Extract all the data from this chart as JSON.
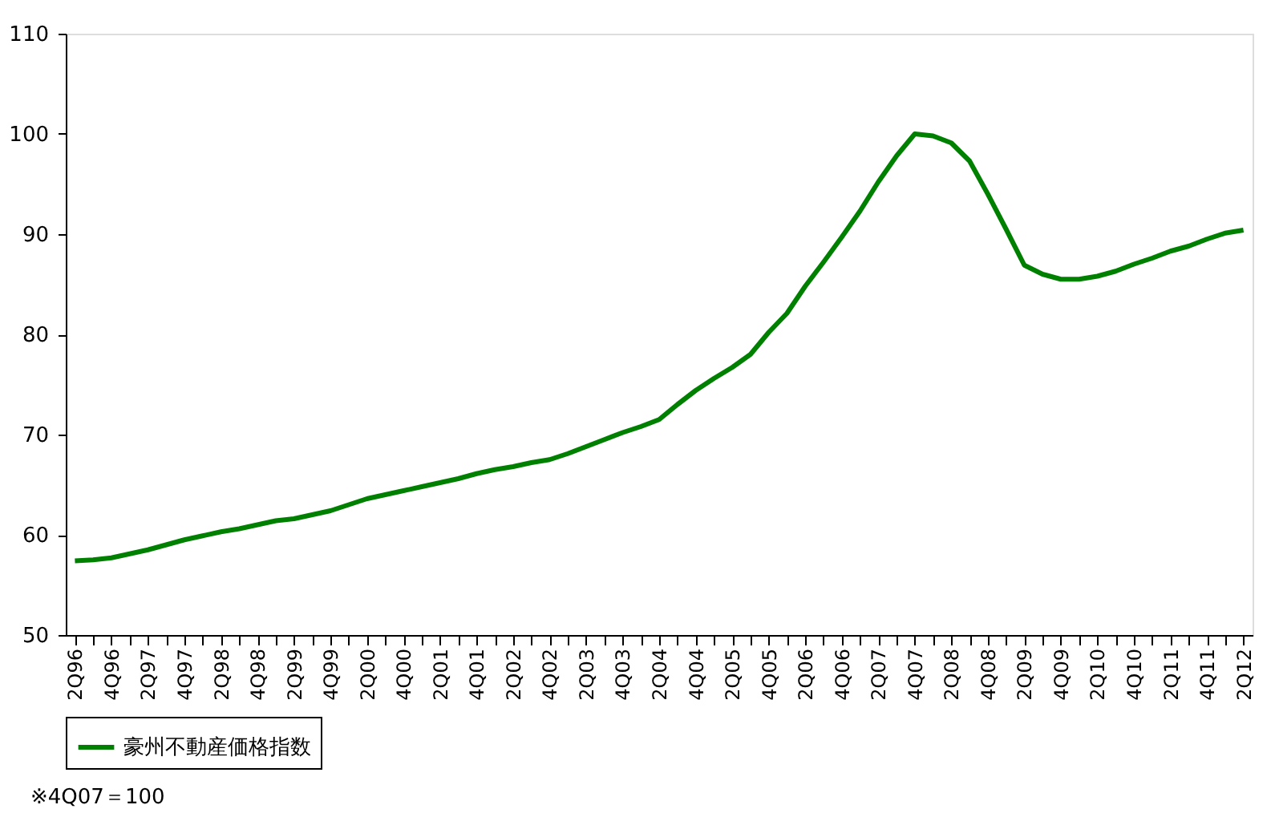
{
  "chart_data": {
    "type": "line",
    "categories": [
      "2Q96",
      null,
      "4Q96",
      null,
      "2Q97",
      null,
      "4Q97",
      null,
      "2Q98",
      null,
      "4Q98",
      null,
      "2Q99",
      null,
      "4Q99",
      null,
      "2Q00",
      null,
      "4Q00",
      null,
      "2Q01",
      null,
      "4Q01",
      null,
      "2Q02",
      null,
      "4Q02",
      null,
      "2Q03",
      null,
      "4Q03",
      null,
      "2Q04",
      null,
      "4Q04",
      null,
      "2Q05",
      null,
      "4Q05",
      null,
      "2Q06",
      null,
      "4Q06",
      null,
      "2Q07",
      null,
      "4Q07",
      null,
      "2Q08",
      null,
      "4Q08",
      null,
      "2Q09",
      null,
      "4Q09",
      null,
      "2Q10",
      null,
      "4Q10",
      null,
      "2Q11",
      null,
      "4Q11",
      null,
      "2Q12"
    ],
    "series": [
      {
        "name": "豪州不動産価格指数",
        "color": "#008000",
        "values": [
          57.4,
          57.5,
          57.7,
          58.1,
          58.5,
          59.0,
          59.5,
          59.9,
          60.3,
          60.6,
          61.0,
          61.4,
          61.6,
          62.0,
          62.4,
          63.0,
          63.6,
          64.0,
          64.4,
          64.8,
          65.2,
          65.6,
          66.1,
          66.5,
          66.8,
          67.2,
          67.5,
          68.1,
          68.8,
          69.5,
          70.2,
          70.8,
          71.5,
          73.0,
          74.4,
          75.6,
          76.7,
          78.0,
          80.2,
          82.1,
          84.8,
          87.2,
          89.7,
          92.3,
          95.2,
          97.8,
          100,
          99.8,
          99.1,
          97.3,
          94.0,
          90.5,
          86.9,
          86.0,
          85.5,
          85.5,
          85.8,
          86.3,
          87.0,
          87.6,
          88.3,
          88.8,
          89.5,
          90.1,
          90.4
        ]
      }
    ],
    "ylim": [
      50,
      110
    ],
    "yticks": [
      50,
      60,
      70,
      80,
      90,
      100,
      110
    ],
    "grid": false,
    "legend": "bottom",
    "marker": "none",
    "line_style": "solid",
    "annotations": [
      "※4Q07＝100"
    ]
  }
}
